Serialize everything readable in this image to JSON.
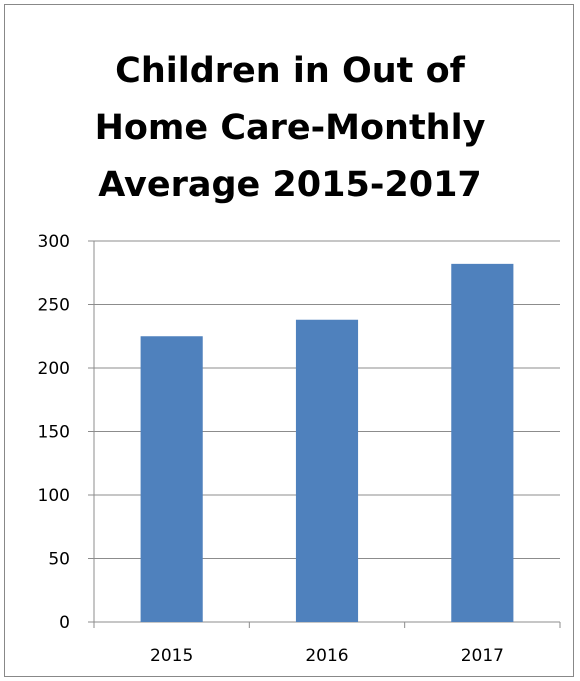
{
  "chart_data": {
    "type": "bar",
    "title": "Children in Out of\nHome Care-Monthly\nAverage 2015-2017",
    "xlabel": "",
    "ylabel": "",
    "categories": [
      "2015",
      "2016",
      "2017"
    ],
    "values": [
      225,
      238,
      282
    ],
    "ylim": [
      0,
      300
    ],
    "yticks": [
      0,
      50,
      100,
      150,
      200,
      250,
      300
    ],
    "grid": true,
    "legend": "none",
    "bar_color": "#4F81BD",
    "grid_color": "#8C8C8C"
  }
}
